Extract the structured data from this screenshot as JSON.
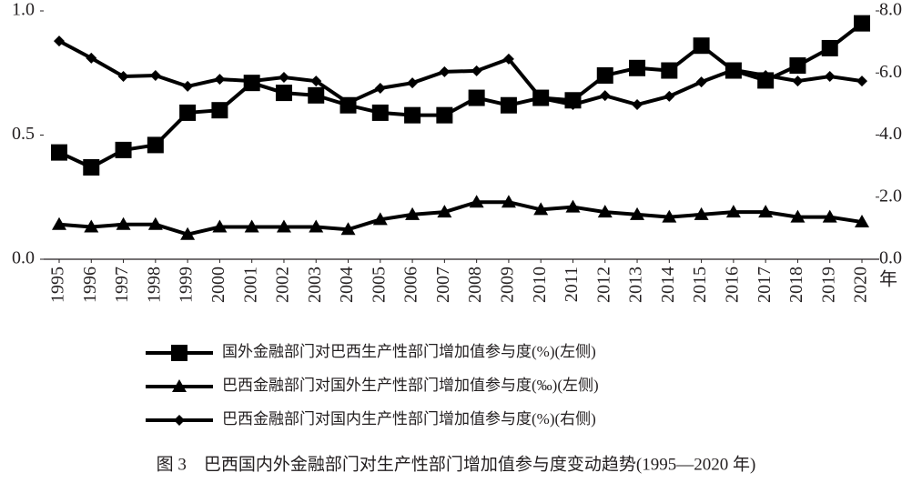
{
  "chart_data": {
    "type": "line",
    "title": "图 3　巴西国内外金融部门对生产性部门增加值参与度变动趋势(1995—2020 年)",
    "x_label": "年",
    "categories": [
      "1995",
      "1996",
      "1997",
      "1998",
      "1999",
      "2000",
      "2001",
      "2002",
      "2003",
      "2004",
      "2005",
      "2006",
      "2007",
      "2008",
      "2009",
      "2010",
      "2011",
      "2012",
      "2013",
      "2014",
      "2015",
      "2016",
      "2017",
      "2018",
      "2019",
      "2020"
    ],
    "ylim": [
      0,
      1
    ],
    "yticks": [
      {
        "value": 0,
        "label": "0.0"
      },
      {
        "value": 0.5,
        "label": "0.5"
      },
      {
        "value": 1,
        "label": "1.0"
      }
    ],
    "y2lim": [
      0,
      8
    ],
    "y2ticks": [
      {
        "value": 0,
        "label": "0.0"
      },
      {
        "value": 2,
        "label": "2.0"
      },
      {
        "value": 4,
        "label": "4.0"
      },
      {
        "value": 6,
        "label": "6.0"
      },
      {
        "value": 8,
        "label": "8.0"
      }
    ],
    "series": [
      {
        "name": "国外金融部门对巴西生产性部门增加值参与度(%)(左侧)",
        "color": "#000000",
        "marker": "square",
        "values": [
          0.43,
          0.37,
          0.44,
          0.46,
          0.59,
          0.6,
          0.71,
          0.67,
          0.66,
          0.62,
          0.59,
          0.58,
          0.58,
          0.65,
          0.62,
          0.65,
          0.64,
          0.74,
          0.77,
          0.76,
          0.86,
          0.76,
          0.72,
          0.78,
          0.85,
          0.95
        ]
      },
      {
        "name": "巴西金融部门对国外生产性部门增加值参与度(‰)(左侧)",
        "color": "#000000",
        "marker": "triangle",
        "values": [
          0.14,
          0.13,
          0.14,
          0.14,
          0.1,
          0.13,
          0.13,
          0.13,
          0.13,
          0.12,
          0.16,
          0.18,
          0.19,
          0.23,
          0.23,
          0.2,
          0.21,
          0.19,
          0.18,
          0.17,
          0.18,
          0.19,
          0.19,
          0.17,
          0.17,
          0.15
        ]
      },
      {
        "name": "巴西金融部门对国内生产性部门增加值参与度(%)(右侧)",
        "color": "#000000",
        "marker": "diamond",
        "axis": "y2",
        "values": [
          7.03,
          6.48,
          5.89,
          5.92,
          5.57,
          5.8,
          5.74,
          5.86,
          5.74,
          5.04,
          5.51,
          5.68,
          6.04,
          6.07,
          6.45,
          5.19,
          4.98,
          5.27,
          4.98,
          5.25,
          5.71,
          6.1,
          5.92,
          5.74,
          5.89,
          5.74
        ]
      }
    ]
  }
}
